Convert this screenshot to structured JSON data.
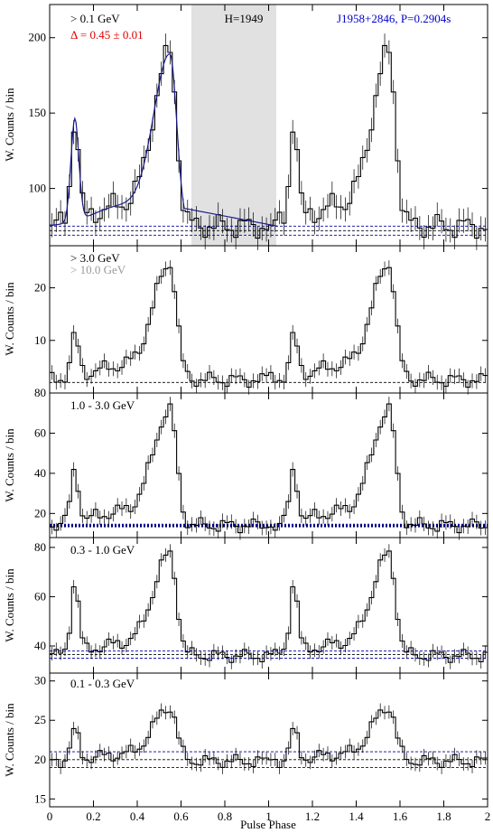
{
  "figure": {
    "xlabel": "Pulse Phase",
    "ylabel": "W. Counts / bin"
  },
  "chart_data": [
    {
      "type": "histogram",
      "panel": "panel-1",
      "energy_label": "> 0.1 GeV",
      "delta_label": "Δ = 0.45 ± 0.01",
      "source_label": "J1958+2846, P=0.2904s",
      "htest_label": "H=1949",
      "offpulse_region": [
        0.65,
        1.04
      ],
      "ylim": [
        62,
        222
      ],
      "yticks": [
        100,
        150,
        200
      ],
      "background_levels": [
        69,
        72,
        75
      ],
      "colors": {
        "delta": "#e00000",
        "source": "#0000cc",
        "fit": "#1a1a8c",
        "offpulse": "#e1e1e1"
      },
      "peak1": 143,
      "peak2": 186,
      "baseline": 75,
      "peaks": [
        {
          "x": 0.11,
          "y": 143
        },
        {
          "x": 0.545,
          "y": 186
        }
      ]
    },
    {
      "type": "histogram",
      "panel": "panel-2",
      "energy_label": "> 3.0 GeV",
      "energy_label_2": "> 10.0 GeV",
      "ylim": [
        0,
        28
      ],
      "yticks": [
        10,
        20
      ],
      "background_levels": [
        2
      ],
      "peak1": 10,
      "peak2": 24,
      "baseline": 2.5
    },
    {
      "type": "histogram",
      "panel": "panel-3",
      "energy_label": "1.0 - 3.0 GeV",
      "ylim": [
        8,
        80
      ],
      "yticks": [
        20,
        40,
        60,
        80
      ],
      "background_levels": [
        13.5,
        14,
        14.5
      ],
      "peak1": 40,
      "peak2": 70,
      "baseline": 14
    },
    {
      "type": "histogram",
      "panel": "panel-4",
      "energy_label": "0.3 - 1.0 GeV",
      "ylim": [
        29,
        84
      ],
      "yticks": [
        40,
        60,
        80
      ],
      "background_levels": [
        35,
        36.5,
        38
      ],
      "peak1": 65,
      "peak2": 76,
      "baseline": 36
    },
    {
      "type": "histogram",
      "panel": "panel-5",
      "energy_label": "0.1 - 0.3 GeV",
      "ylim": [
        14,
        31
      ],
      "yticks": [
        15,
        20,
        25,
        30
      ],
      "background_levels": [
        19,
        20,
        21
      ],
      "peak1": 23.5,
      "peak2": 26.5,
      "baseline": 19.8
    }
  ],
  "x_axis": {
    "xlim": [
      0,
      2
    ],
    "tick_labels": [
      "0",
      "0.2",
      "0.4",
      "0.6",
      "0.8",
      "1",
      "1.2",
      "1.4",
      "1.6",
      "1.8",
      "2"
    ]
  }
}
